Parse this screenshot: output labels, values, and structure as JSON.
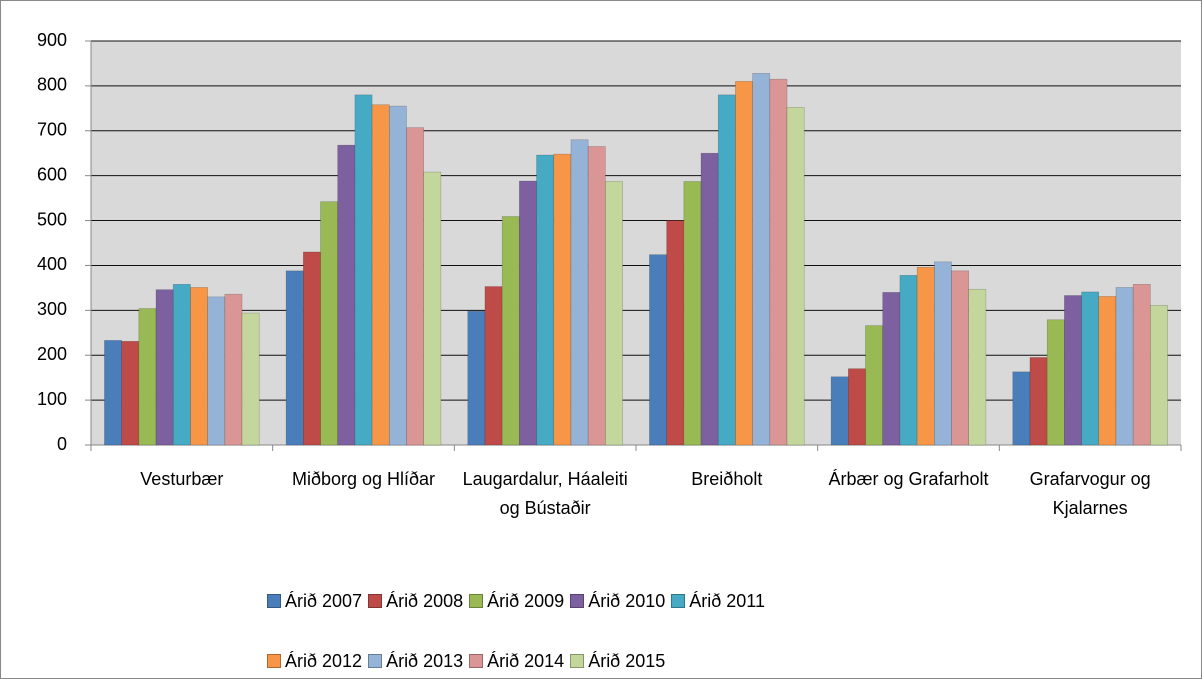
{
  "chart_data": {
    "type": "bar",
    "categories": [
      "Vesturbær",
      "Miðborg og Hlíðar",
      "Laugardalur, Háaleiti og Bústaðir",
      "Breiðholt",
      "Árbær og Grafarholt",
      "Grafarvogur og Kjalarnes"
    ],
    "series": [
      {
        "name": "Árið 2007",
        "color": "#4a7ebb",
        "values": [
          233,
          388,
          298,
          424,
          152,
          163
        ]
      },
      {
        "name": "Árið 2008",
        "color": "#be4b48",
        "values": [
          231,
          430,
          353,
          500,
          170,
          195
        ]
      },
      {
        "name": "Árið 2009",
        "color": "#98b954",
        "values": [
          304,
          542,
          509,
          587,
          266,
          279
        ]
      },
      {
        "name": "Árið 2010",
        "color": "#7d60a0",
        "values": [
          346,
          668,
          588,
          650,
          340,
          333
        ]
      },
      {
        "name": "Árið 2011",
        "color": "#46aac5",
        "values": [
          358,
          780,
          646,
          780,
          378,
          341
        ]
      },
      {
        "name": "Árið 2012",
        "color": "#f79646",
        "values": [
          351,
          758,
          648,
          810,
          396,
          331
        ]
      },
      {
        "name": "Árið 2013",
        "color": "#95b3d7",
        "values": [
          330,
          755,
          680,
          828,
          408,
          351
        ]
      },
      {
        "name": "Árið 2014",
        "color": "#d99694",
        "values": [
          336,
          707,
          665,
          815,
          388,
          358
        ]
      },
      {
        "name": "Árið 2015",
        "color": "#c3d69b",
        "values": [
          294,
          608,
          587,
          752,
          347,
          311
        ]
      }
    ],
    "ylim": [
      0,
      900
    ],
    "yticks": [
      0,
      100,
      200,
      300,
      400,
      500,
      600,
      700,
      800,
      900
    ],
    "grid": true,
    "legend": "bottom"
  }
}
